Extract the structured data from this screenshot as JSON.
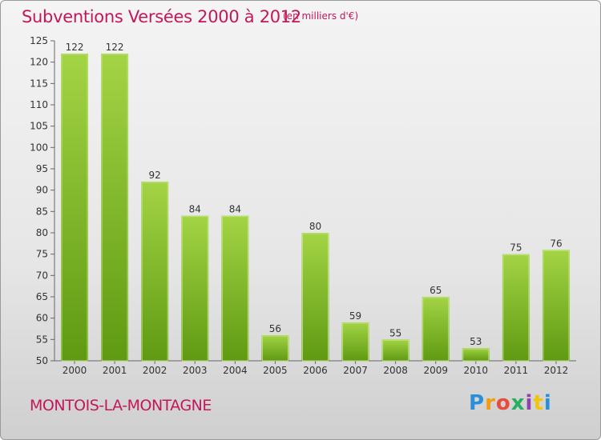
{
  "header": {
    "title": "Subventions Versées 2000 à 2012",
    "subtitle": "(en milliers d'€)"
  },
  "footer": {
    "commune": "MONTOIS-LA-MONTAGNE",
    "logo": "Proxiti"
  },
  "colors": {
    "bar_light": "#9ccd3c",
    "bar_dark": "#5f9a12",
    "title": "#c2185b"
  },
  "chart_data": {
    "type": "bar",
    "title": "Subventions Versées 2000 à 2012",
    "xlabel": "",
    "ylabel": "",
    "categories": [
      "2000",
      "2001",
      "2002",
      "2003",
      "2004",
      "2005",
      "2006",
      "2007",
      "2008",
      "2009",
      "2010",
      "2011",
      "2012"
    ],
    "values": [
      122,
      122,
      92,
      84,
      84,
      56,
      80,
      59,
      55,
      65,
      53,
      75,
      76
    ],
    "ylim": [
      50,
      125
    ],
    "yticks": [
      50,
      55,
      60,
      65,
      70,
      75,
      80,
      85,
      90,
      95,
      100,
      105,
      110,
      115,
      120,
      125
    ],
    "grid": false,
    "data_labels": true
  }
}
